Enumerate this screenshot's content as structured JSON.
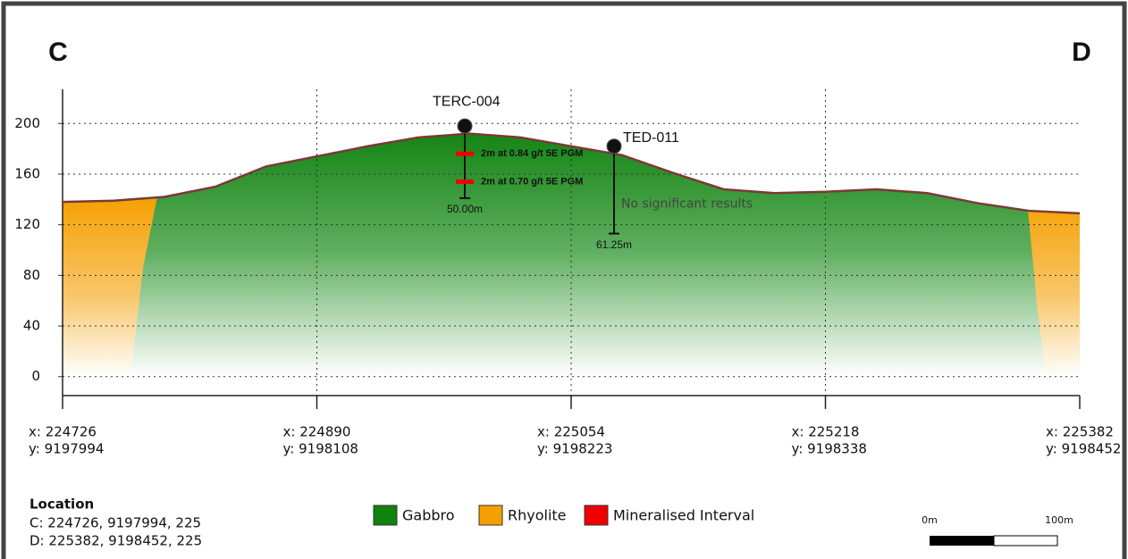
{
  "section": {
    "start_label": "C",
    "end_label": "D"
  },
  "chart_data": {
    "type": "section",
    "ylim": [
      -15,
      227
    ],
    "yticks": [
      0,
      40,
      80,
      120,
      160,
      200
    ],
    "grid": true,
    "stations": [
      {
        "x": "x: 224726",
        "y": "y: 9197994"
      },
      {
        "x": "x: 224890",
        "y": "y: 9198108"
      },
      {
        "x": "x: 225054",
        "y": "y: 9198223"
      },
      {
        "x": "x: 225218",
        "y": "y: 9198338"
      },
      {
        "x": "x: 225382",
        "y": "y: 9198452"
      }
    ],
    "surface": [
      138,
      139,
      142,
      150,
      166,
      174,
      182,
      189,
      192,
      189,
      182,
      175,
      161,
      148,
      145,
      146,
      148,
      145,
      137,
      131,
      129
    ],
    "drillholes": [
      {
        "name": "TERC-004",
        "collar": 198,
        "end": 141,
        "depth_label": "50.00m",
        "intervals": [
          {
            "label": "2m at 0.84 g/t 5E PGM",
            "elevation": 176
          },
          {
            "label": "2m at 0.70 g/t 5E PGM",
            "elevation": 154
          }
        ]
      },
      {
        "name": "TED-011",
        "collar": 182,
        "end": 113,
        "depth_label": "61.25m",
        "note": "No significant results"
      }
    ],
    "legend": [
      {
        "name": "Gabbro",
        "color": "#0f820f"
      },
      {
        "name": "Rhyolite",
        "color": "#f5a000"
      },
      {
        "name": "Mineralised Interval",
        "color": "#ee0000"
      }
    ]
  },
  "location": {
    "title": "Location",
    "lines": [
      "C: 224726, 9197994, 225",
      "D: 225382, 9198452, 225"
    ]
  },
  "scale_bar": {
    "start": "0m",
    "end": "100m"
  }
}
